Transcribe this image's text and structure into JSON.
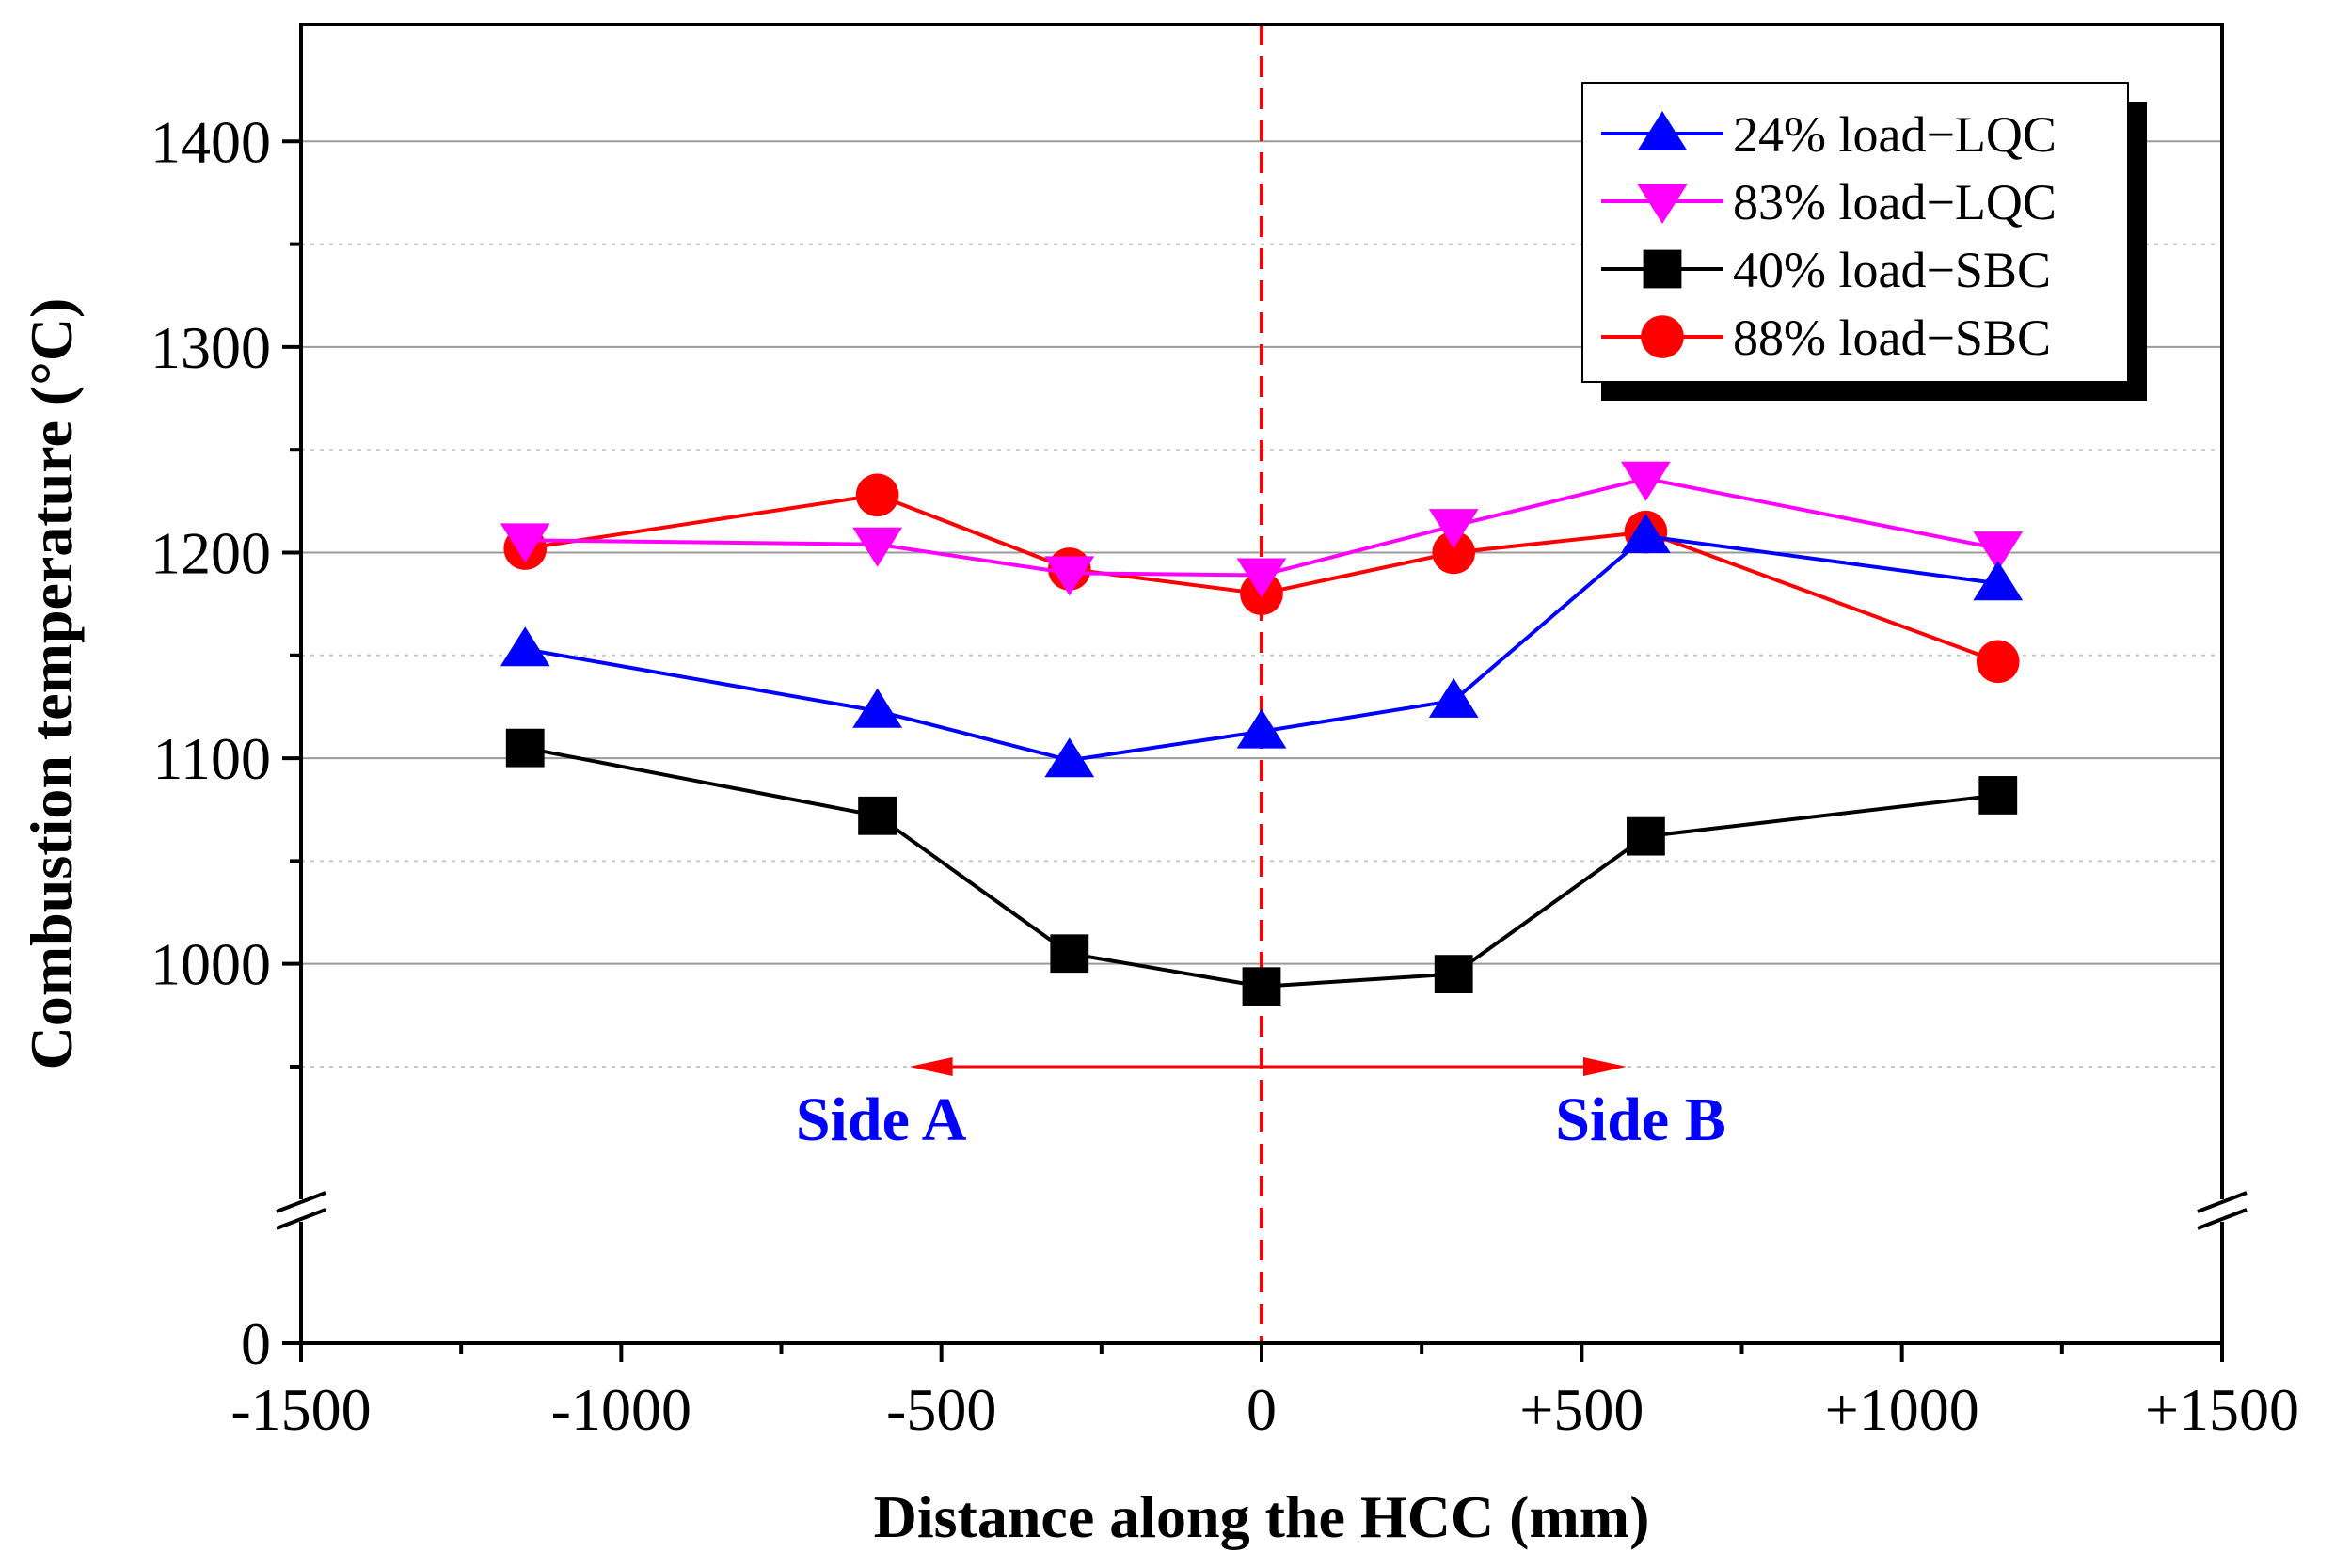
{
  "chart_data": {
    "type": "line",
    "xlabel": "Distance along the HCC (mm)",
    "ylabel": "Combustion temperature (°C)",
    "xlim": [
      -1500,
      1500
    ],
    "ylim": [
      0,
      1450
    ],
    "y_axis_break": [
      0,
      880
    ],
    "x_ticks": [
      {
        "value": -1500,
        "label": "-1500"
      },
      {
        "value": -1000,
        "label": "-1000"
      },
      {
        "value": -500,
        "label": "-500"
      },
      {
        "value": 0,
        "label": "0"
      },
      {
        "value": 500,
        "label": "+500"
      },
      {
        "value": 1000,
        "label": "+1000"
      },
      {
        "value": 1500,
        "label": "+1500"
      }
    ],
    "y_ticks": [
      {
        "value": 0,
        "label": "0"
      },
      {
        "value": 1000,
        "label": "1000"
      },
      {
        "value": 1100,
        "label": "1100"
      },
      {
        "value": 1200,
        "label": "1200"
      },
      {
        "value": 1300,
        "label": "1300"
      },
      {
        "value": 1400,
        "label": "1400"
      }
    ],
    "major_grid": [
      1000,
      1100,
      1200,
      1300,
      1400
    ],
    "minor_grid": [
      950,
      1050,
      1150,
      1250,
      1350
    ],
    "center_line_x": 0,
    "x_values": [
      -1150,
      -600,
      -300,
      0,
      300,
      600,
      1150
    ],
    "series": [
      {
        "name": "24% load−LQC",
        "color": "#0000ff",
        "marker": "triangle-up",
        "values": [
          1153,
          1123,
          1099,
          1113,
          1128,
          1208,
          1185
        ]
      },
      {
        "name": "83% load−LQC",
        "color": "#ff00ff",
        "marker": "triangle-down",
        "values": [
          1206,
          1204,
          1190,
          1189,
          1213,
          1236,
          1202
        ]
      },
      {
        "name": "40% load−SBC",
        "color": "#000000",
        "marker": "square",
        "values": [
          1105,
          1072,
          1005,
          989,
          995,
          1062,
          1082
        ]
      },
      {
        "name": "88% load−SBC",
        "color": "#ff0000",
        "marker": "circle",
        "values": [
          1202,
          1228,
          1192,
          1180,
          1200,
          1210,
          1147
        ]
      }
    ],
    "annotations": {
      "arrow": {
        "y": 950,
        "x_from": -550,
        "x_to": 570,
        "color": "#ff0000"
      },
      "side_a": {
        "text": "Side A",
        "x": -550,
        "color": "#0000ff"
      },
      "side_b": {
        "text": "Side B",
        "x": 570,
        "color": "#0000ff"
      }
    },
    "legend_position": "top-right"
  }
}
